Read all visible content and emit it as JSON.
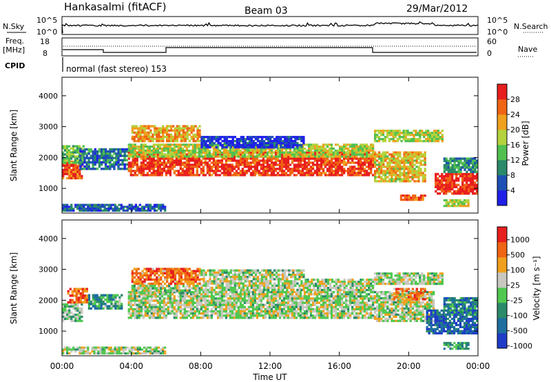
{
  "header": {
    "station": "Hankasalmi (fitACF)",
    "beam": "Beam 03",
    "date": "29/Mar/2012"
  },
  "noise_panel": {
    "left_label": "N.Sky",
    "right_label": "N.Search",
    "ytick_top": "10^5",
    "ytick_bottom": "10^0"
  },
  "freq_panel": {
    "left_label_1": "Freq.",
    "left_label_2": "[MHz]",
    "left_tick_top": "18",
    "left_tick_bottom": "8",
    "right_label": "Nave",
    "right_tick_top": "60",
    "right_tick_bottom": "0"
  },
  "cpid": {
    "label": "CPID",
    "mode": "normal (fast stereo) 153"
  },
  "axes": {
    "ylabel": "Slant Range [km]",
    "xlabel": "Time UT",
    "xticks": [
      "00:00",
      "04:00",
      "08:00",
      "12:00",
      "16:00",
      "20:00",
      "00:00"
    ],
    "yticks": [
      "1000",
      "2000",
      "3000",
      "4000"
    ]
  },
  "colorbars": {
    "power": {
      "label": "Power [dB]",
      "ticks": [
        "4",
        "8",
        "12",
        "16",
        "20",
        "24",
        "28"
      ],
      "colors": [
        "#1f1fe8",
        "#1e50b4",
        "#2a8a6a",
        "#50c050",
        "#b4d23c",
        "#f0a01e",
        "#f06414",
        "#e81e1e"
      ]
    },
    "velocity": {
      "label": "Velocity [m s⁻¹]",
      "ticks": [
        "1000",
        "500",
        "100",
        "25",
        "-25",
        "-100",
        "-500",
        "-1000"
      ],
      "colors": [
        "#1f3cc8",
        "#1e6ea0",
        "#2a8a6a",
        "#50c850",
        "#c8c8c0",
        "#f0a01e",
        "#f06414",
        "#e81e1e"
      ]
    }
  },
  "chart_data": [
    {
      "type": "heatmap",
      "name": "power",
      "x_range_hours": [
        0,
        24
      ],
      "ylim_km": [
        200,
        4600
      ],
      "clim_db": [
        0,
        32
      ],
      "regions": [
        {
          "t0": 0.0,
          "t1": 1.2,
          "r0": 1300,
          "r1": 1900,
          "level": 0.85
        },
        {
          "t0": 0.0,
          "t1": 1.3,
          "r0": 1800,
          "r1": 2400,
          "level": 0.45
        },
        {
          "t0": 1.0,
          "t1": 3.8,
          "r0": 1600,
          "r1": 2300,
          "level": 0.25
        },
        {
          "t0": 3.8,
          "t1": 18.0,
          "r0": 1400,
          "r1": 2200,
          "level": 0.9
        },
        {
          "t0": 3.8,
          "t1": 18.0,
          "r0": 2000,
          "r1": 2450,
          "level": 0.55
        },
        {
          "t0": 4.0,
          "t1": 8.0,
          "r0": 2500,
          "r1": 3050,
          "level": 0.7
        },
        {
          "t0": 8.0,
          "t1": 14.0,
          "r0": 2300,
          "r1": 2700,
          "level": 0.1
        },
        {
          "t0": 18.0,
          "t1": 21.0,
          "r0": 1200,
          "r1": 2200,
          "level": 0.65
        },
        {
          "t0": 18.0,
          "t1": 22.0,
          "r0": 2500,
          "r1": 2900,
          "level": 0.55
        },
        {
          "t0": 21.5,
          "t1": 24.0,
          "r0": 800,
          "r1": 1500,
          "level": 0.95
        },
        {
          "t0": 22.0,
          "t1": 24.0,
          "r0": 1500,
          "r1": 2000,
          "level": 0.3
        },
        {
          "t0": 0.0,
          "t1": 6.0,
          "r0": 250,
          "r1": 500,
          "level": 0.2
        },
        {
          "t0": 22.0,
          "t1": 23.5,
          "r0": 400,
          "r1": 650,
          "level": 0.55
        },
        {
          "t0": 19.5,
          "t1": 21.0,
          "r0": 600,
          "r1": 800,
          "level": 0.85
        }
      ]
    },
    {
      "type": "heatmap",
      "name": "velocity",
      "x_range_hours": [
        0,
        24
      ],
      "ylim_km": [
        200,
        4600
      ],
      "clim_ms": [
        -1000,
        1000
      ],
      "regions": [
        {
          "t0": 0.0,
          "t1": 1.2,
          "r0": 1300,
          "r1": 1900,
          "level": 0.45
        },
        {
          "t0": 0.3,
          "t1": 1.5,
          "r0": 1900,
          "r1": 2400,
          "level": 0.8
        },
        {
          "t0": 1.5,
          "t1": 3.5,
          "r0": 1700,
          "r1": 2200,
          "level": 0.35
        },
        {
          "t0": 3.8,
          "t1": 18.0,
          "r0": 1400,
          "r1": 2300,
          "level": 0.52
        },
        {
          "t0": 4.0,
          "t1": 8.0,
          "r0": 2500,
          "r1": 3050,
          "level": 0.78
        },
        {
          "t0": 4.0,
          "t1": 8.0,
          "r0": 2200,
          "r1": 2500,
          "level": 0.5
        },
        {
          "t0": 8.0,
          "t1": 14.0,
          "r0": 2300,
          "r1": 3000,
          "level": 0.52
        },
        {
          "t0": 14.0,
          "t1": 18.0,
          "r0": 2300,
          "r1": 2700,
          "level": 0.52
        },
        {
          "t0": 18.0,
          "t1": 21.5,
          "r0": 1300,
          "r1": 2300,
          "level": 0.52
        },
        {
          "t0": 19.0,
          "t1": 21.0,
          "r0": 2000,
          "r1": 2400,
          "level": 0.75
        },
        {
          "t0": 18.0,
          "t1": 22.0,
          "r0": 2500,
          "r1": 2900,
          "level": 0.52
        },
        {
          "t0": 21.0,
          "t1": 24.0,
          "r0": 900,
          "r1": 1700,
          "level": 0.15
        },
        {
          "t0": 22.0,
          "t1": 24.0,
          "r0": 1500,
          "r1": 2100,
          "level": 0.25
        },
        {
          "t0": 0.0,
          "t1": 6.0,
          "r0": 250,
          "r1": 500,
          "level": 0.52
        },
        {
          "t0": 22.0,
          "t1": 23.5,
          "r0": 400,
          "r1": 650,
          "level": 0.35
        }
      ]
    }
  ]
}
